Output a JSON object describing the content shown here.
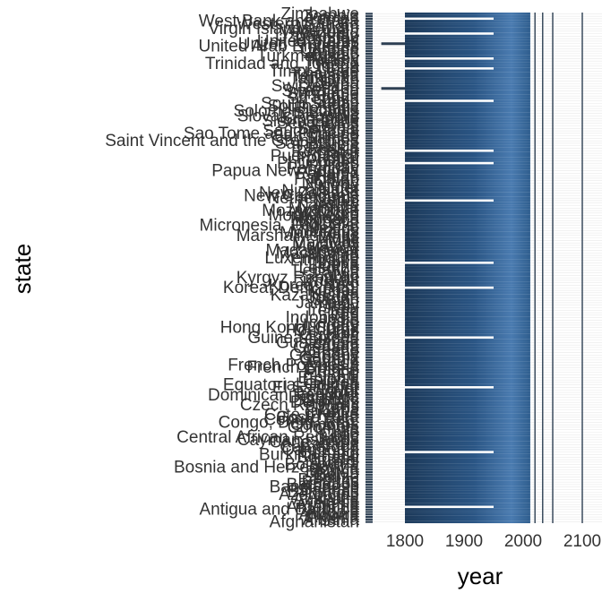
{
  "chart_data": {
    "type": "heatmap",
    "xlabel": "year",
    "ylabel": "state",
    "x_ticks": [
      1800,
      1900,
      2000,
      2100
    ],
    "xlim": [
      1740,
      2110
    ],
    "shown_y_labels": [
      "Zimbabwe",
      "Zambia",
      "Yemen",
      "West Bank and Gaza",
      "Western Sahara",
      "Vietnam",
      "Virgin Islands (U.S.)",
      "Venezuela",
      "Vanuatu",
      "Uzbekistan",
      "Uruguay",
      "United States",
      "United Kingdom",
      "United Arab Emirates",
      "Ukraine",
      "Uganda",
      "Tuvalu",
      "Turkmenistan",
      "Turkey",
      "Tunisia",
      "Trinidad and Tobago",
      "Tonga",
      "Togo",
      "Timor-Leste",
      "Thailand",
      "Tanzania",
      "Tajikistan",
      "Taiwan",
      "Syria",
      "Switzerland",
      "Sweden",
      "Swaziland",
      "Suriname",
      "Sudan",
      "Sri Lanka",
      "Spain",
      "South Sudan",
      "South Africa",
      "Somalia",
      "Solomon Islands",
      "Slovenia",
      "Slovak Republic",
      "Singapore",
      "Sierra Leone",
      "Seychelles",
      "Serbia",
      "Senegal",
      "Saudi Arabia",
      "Sao Tome and Principe",
      "San Marino",
      "Samoa",
      "Saint Vincent and the Grenadines",
      "Saint Lucia",
      "Rwanda",
      "Russia",
      "Romania",
      "Qatar",
      "Puerto Rico",
      "Portugal",
      "Poland",
      "Philippines",
      "Peru",
      "Paraguay",
      "Papua New Guinea",
      "Panama",
      "Palau",
      "Pakistan",
      "Oman",
      "Norway",
      "Nigeria",
      "Niger",
      "Nicaragua",
      "New Zealand",
      "New Caledonia",
      "Netherlands",
      "Nepal",
      "Nauru",
      "Namibia",
      "Myanmar",
      "Mozambique",
      "Morocco",
      "Montenegro",
      "Mongolia",
      "Monaco",
      "Moldova",
      "Micronesia, Fed. Sts.",
      "Mexico",
      "Mauritius",
      "Mauritania",
      "Marshall Islands",
      "Malta",
      "Mali",
      "Maldives",
      "Malaysia",
      "Malawi",
      "Madagascar",
      "Macedonia",
      "Macao",
      "Luxembourg",
      "Lithuania",
      "Libya",
      "Liberia",
      "Lesotho",
      "Lebanon",
      "Latvia",
      "Lao",
      "Kyrgyz Republic",
      "Kuwait",
      "Kosovo",
      "Korea, Rep.",
      "Korea, Dem. Rep.",
      "Kiribati",
      "Kenya",
      "Kazakhstan",
      "Jordan",
      "Japan",
      "Jamaica",
      "Italy",
      "Israel",
      "Ireland",
      "Iraq",
      "Iran",
      "Indonesia",
      "India",
      "Iceland",
      "Hungary",
      "Hong Kong, China",
      "Honduras",
      "Haiti",
      "Guyana",
      "Guinea-Bissau",
      "Guinea",
      "Guatemala",
      "Guam",
      "Grenada",
      "Greece",
      "Ghana",
      "Germany",
      "Georgia",
      "Gambia",
      "Gabon",
      "French Polynesia",
      "French Guiana",
      "France",
      "Finland",
      "Fiji",
      "Ethiopia",
      "Estonia",
      "Eritrea",
      "Equatorial Guinea",
      "El Salvador",
      "Egypt",
      "Ecuador",
      "Dominican Republic",
      "Dominica",
      "Djibouti",
      "Denmark",
      "Czech Republic",
      "Cyprus",
      "Cuba",
      "Croatia",
      "Cote d'Ivoire",
      "Costa Rica",
      "Congo, Rep.",
      "Congo, Dem. Rep.",
      "Comoros",
      "Colombia",
      "China",
      "Chile",
      "Chad",
      "Central African Republic",
      "Cayman Islands",
      "Cape Verde",
      "Canada",
      "Cameroon",
      "Cambodia",
      "Burundi",
      "Burkina Faso",
      "Bulgaria",
      "Brunei",
      "Brazil",
      "Botswana",
      "Bosnia and Herzegovina",
      "Bolivia",
      "Bhutan",
      "Benin",
      "Belize",
      "Belgium",
      "Belarus",
      "Barbados",
      "Bangladesh",
      "Bahrain",
      "Bahamas",
      "Azerbaijan",
      "Austria",
      "Australia",
      "Aruba",
      "Armenia",
      "Argentina",
      "Antigua and Barbuda",
      "Angola",
      "Andorra",
      "Algeria",
      "Albania",
      "Afghanistan"
    ],
    "cell_range_years": [
      1800,
      2012
    ],
    "projection_columns_years": [
      2020,
      2033,
      2050,
      2100
    ],
    "white_gap_rows": [
      2,
      8,
      18,
      22,
      35,
      55,
      60,
      75,
      100,
      110,
      130,
      150,
      176,
      198
    ],
    "early_bar_rows": [
      {
        "state": "United Kingdom",
        "start": 1760,
        "end": 1800
      },
      {
        "state": "Sweden",
        "start": 1760,
        "end": 1800
      }
    ],
    "colors": {
      "cell_dark": "#1d3a5a",
      "cell_light": "#4a7bb0",
      "marker": "#2d3f52",
      "gridline": "#e9e9e9",
      "white": "#ffffff"
    },
    "legend": "none"
  }
}
